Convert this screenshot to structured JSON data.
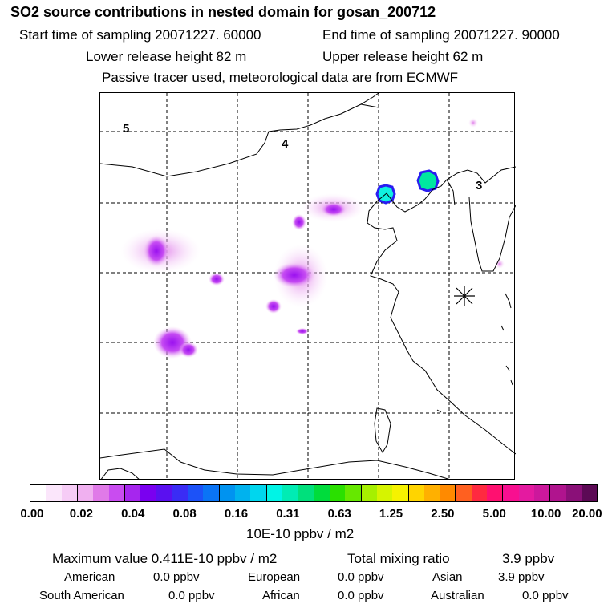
{
  "header": {
    "title": "SO2 source contributions in nested domain for gosan_200712",
    "start": "Start time of sampling 20071227. 60000",
    "end": "End time of sampling 20071227. 90000",
    "lower": "Lower release height   82 m",
    "upper": "Upper release height   62 m",
    "tracer": "Passive tracer used, meteorological data are from ECMWF"
  },
  "map": {
    "region_labels": [
      "5",
      "4",
      "3"
    ],
    "receptor_marker": "gosan-receptor-star",
    "hotspots": [
      {
        "name": "hotspot-beijing",
        "value_ppbv_m2": 0.2
      },
      {
        "name": "hotspot-tangshan",
        "value_ppbv_m2": 0.25
      },
      {
        "name": "hotspot-hebei",
        "value_ppbv_m2": 0.035
      },
      {
        "name": "hotspot-shanxi",
        "value_ppbv_m2": 0.03
      },
      {
        "name": "hotspot-henan",
        "value_ppbv_m2": 0.045
      }
    ]
  },
  "colorbar": {
    "unit": "10E-10 ppbv / m2",
    "ticks": [
      "0.00",
      "0.02",
      "0.04",
      "0.08",
      "0.16",
      "0.31",
      "0.63",
      "1.25",
      "2.50",
      "5.00",
      "10.00",
      "20.00"
    ],
    "colors": [
      "#ffffff",
      "#fbe6fb",
      "#f6ccf6",
      "#f0b0f0",
      "#e07ae8",
      "#c94cf0",
      "#a626ee",
      "#7a00f0",
      "#5a10f0",
      "#3a2cf5",
      "#1c52f8",
      "#0a74f6",
      "#0093f0",
      "#00b2ee",
      "#00d6ee",
      "#00f4e6",
      "#00ecb4",
      "#00e07c",
      "#00dc3c",
      "#2ae000",
      "#66e800",
      "#a6f000",
      "#d6f400",
      "#f6f200",
      "#ffd400",
      "#ffb000",
      "#ff8a00",
      "#ff6020",
      "#ff2a40",
      "#ff1070",
      "#f80f90",
      "#e41aa0",
      "#cc189c",
      "#b0148e",
      "#8a1078",
      "#5c0a55"
    ]
  },
  "footer": {
    "max_value": "Maximum value  0.411E-10 ppbv / m2",
    "total_label": "Total mixing ratio",
    "total_value": "3.9 ppbv",
    "regions": [
      {
        "name": "American",
        "value": "0.0 ppbv"
      },
      {
        "name": "European",
        "value": "0.0 ppbv"
      },
      {
        "name": "Asian",
        "value": "3.9 ppbv"
      },
      {
        "name": "South American",
        "value": "0.0 ppbv"
      },
      {
        "name": "African",
        "value": "0.0 ppbv"
      },
      {
        "name": "Australian",
        "value": "0.0 ppbv"
      }
    ]
  }
}
